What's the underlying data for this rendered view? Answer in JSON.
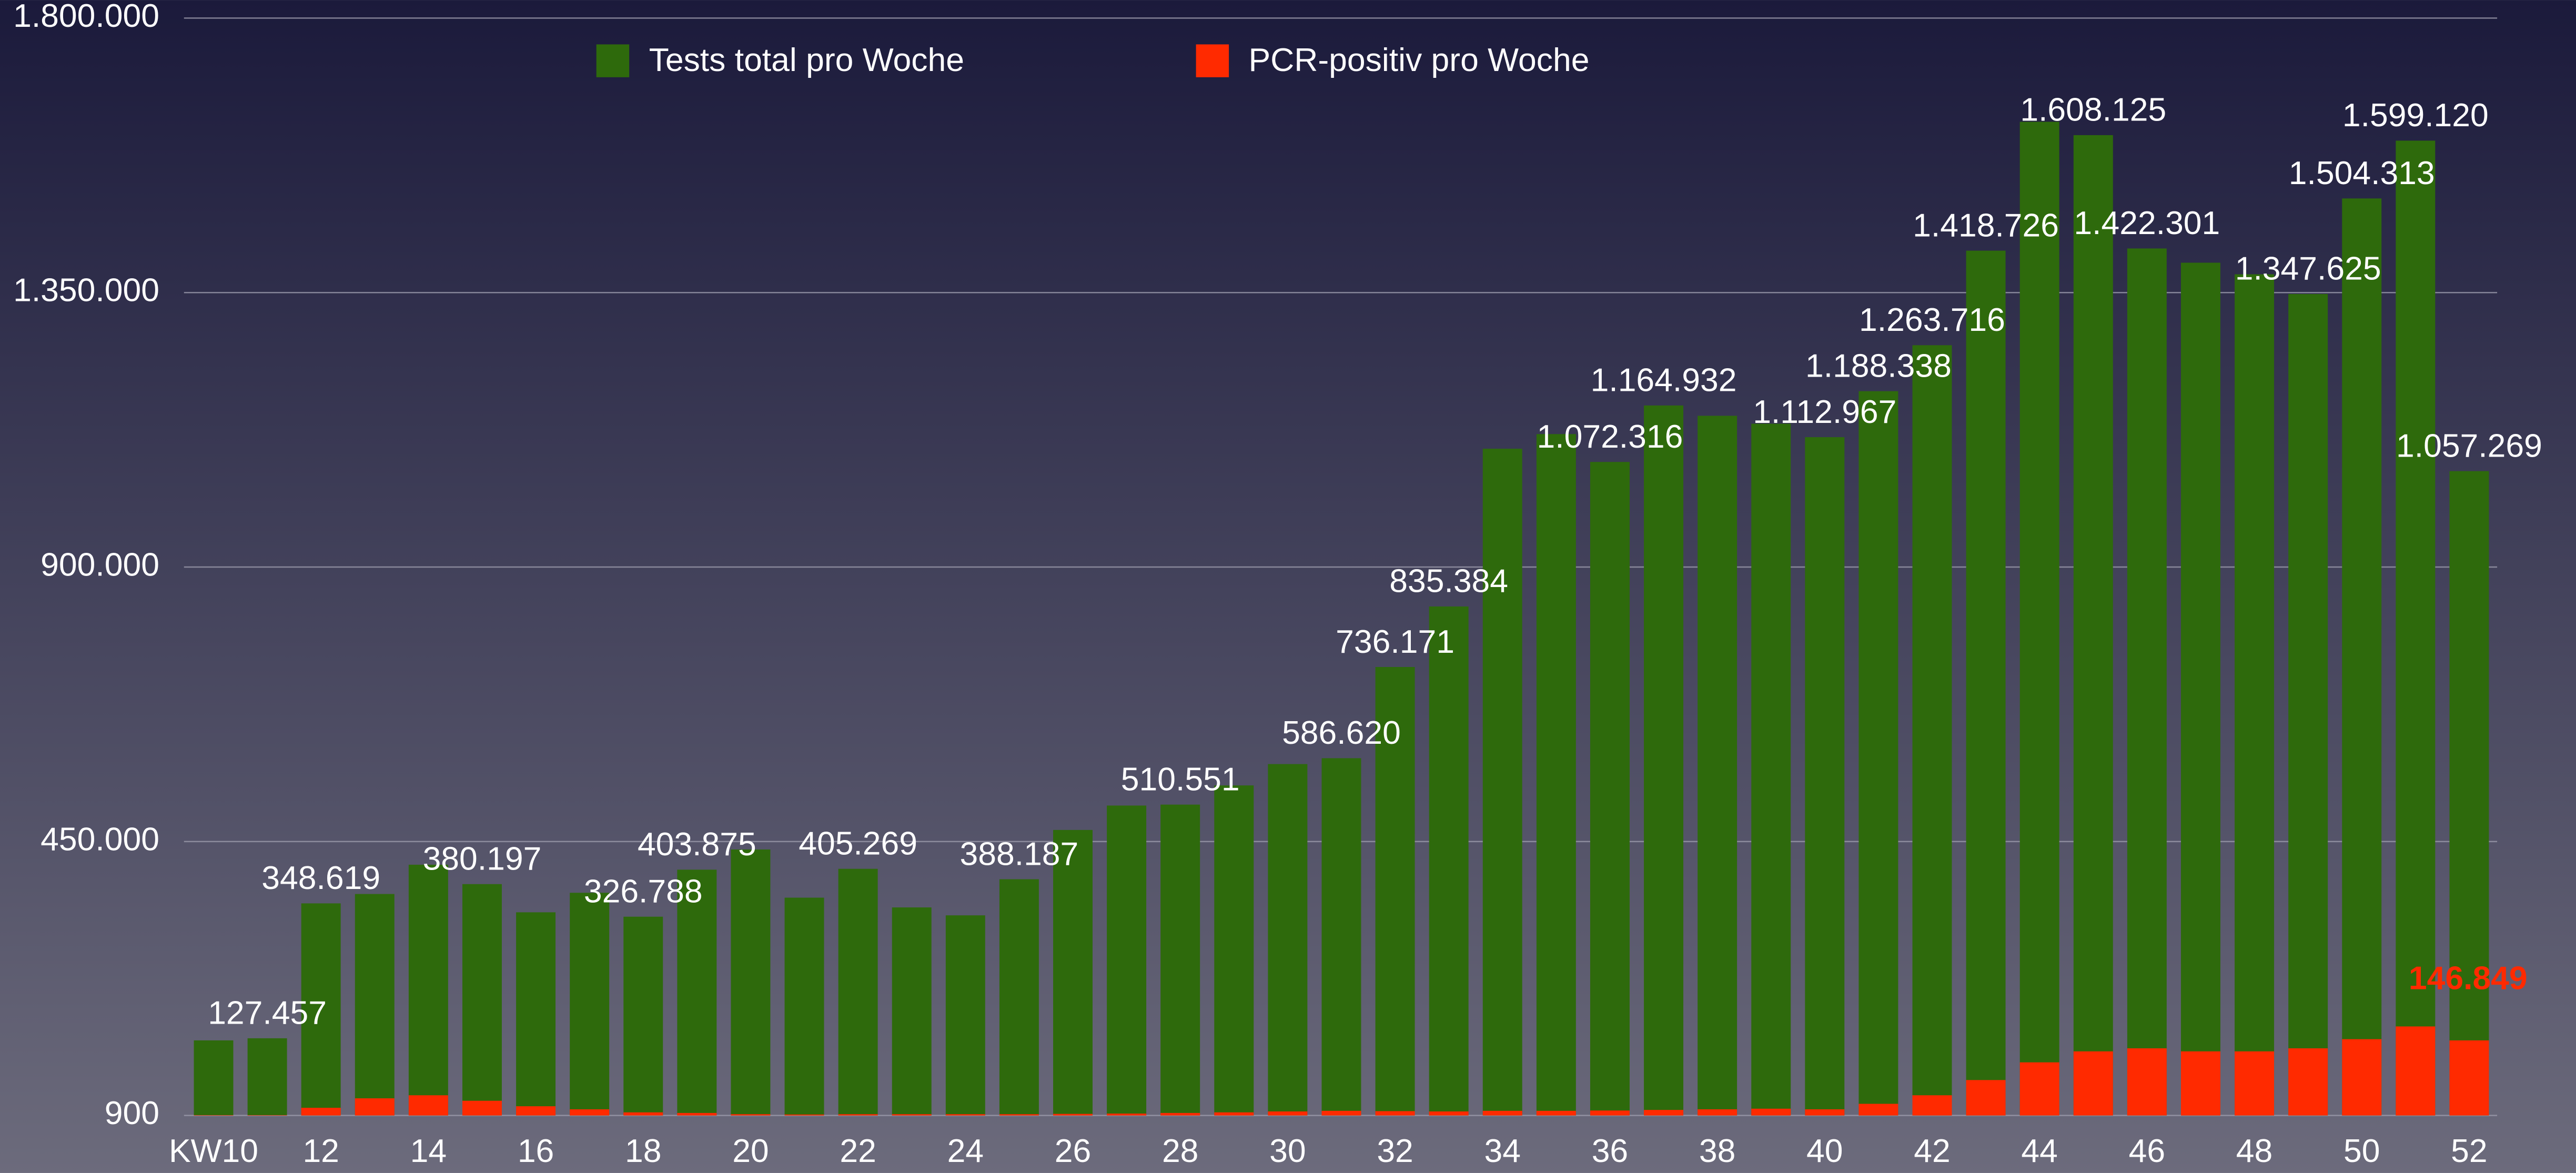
{
  "chart_data": {
    "type": "bar",
    "legend": "top",
    "grid": true,
    "categories": [
      "KW10",
      null,
      "12",
      null,
      "14",
      null,
      "16",
      null,
      "18",
      null,
      "20",
      null,
      "22",
      null,
      "24",
      null,
      "26",
      null,
      "28",
      null,
      "30",
      null,
      "32",
      null,
      "34",
      null,
      "36",
      null,
      "38",
      null,
      "40",
      null,
      "42",
      null,
      "44",
      null,
      "46",
      null,
      "48",
      null,
      "50",
      null,
      "52"
    ],
    "series": [
      {
        "name": "Tests total pro Woche",
        "color": "#2e6a0c",
        "values": [
          124000,
          127457,
          348619,
          364000,
          412000,
          380197,
          334000,
          366000,
          326788,
          403875,
          437000,
          358000,
          405269,
          342000,
          329000,
          388187,
          469000,
          509000,
          510551,
          542000,
          577000,
          586620,
          736171,
          835384,
          1094000,
          1118000,
          1072316,
          1164932,
          1148000,
          1135000,
          1112967,
          1188338,
          1263716,
          1418726,
          1630000,
          1608125,
          1422301,
          1399000,
          1380000,
          1347625,
          1504313,
          1599120,
          1057269
        ],
        "value_labels": [
          null,
          "127.457",
          "348.619",
          null,
          null,
          "380.197",
          null,
          null,
          "326.788",
          "403.875",
          null,
          null,
          "405.269",
          null,
          null,
          "388.187",
          null,
          null,
          "510.551",
          null,
          null,
          "586.620",
          "736.171",
          "835.384",
          null,
          null,
          "1.072.316",
          "1.164.932",
          null,
          null,
          "1.112.967",
          "1.188.338",
          "1.263.716",
          "1.418.726",
          null,
          "1.608.125",
          "1.422.301",
          null,
          null,
          "1.347.625",
          "1.504.313",
          "1.599.120",
          "1.057.269"
        ]
      },
      {
        "name": "PCR-positiv pro Woche",
        "color": "#ff2a00",
        "values": [
          1500,
          1500,
          13500,
          29000,
          34000,
          25000,
          16000,
          11000,
          6000,
          5000,
          3000,
          2500,
          3000,
          3000,
          3000,
          3000,
          3500,
          4000,
          5000,
          6000,
          7500,
          8500,
          8000,
          7500,
          8500,
          8500,
          9000,
          10000,
          11000,
          12000,
          11000,
          20000,
          34000,
          59000,
          88000,
          106000,
          111000,
          106000,
          106000,
          111000,
          126000,
          146849,
          124000
        ],
        "value_labels": [
          null,
          null,
          null,
          null,
          null,
          null,
          null,
          null,
          null,
          null,
          null,
          null,
          null,
          null,
          null,
          null,
          null,
          null,
          null,
          null,
          null,
          null,
          null,
          null,
          null,
          null,
          null,
          null,
          null,
          null,
          null,
          null,
          null,
          null,
          null,
          null,
          null,
          null,
          null,
          null,
          null,
          "146.849",
          null
        ]
      }
    ],
    "ylim": [
      900,
      1800000
    ],
    "yticks": [
      900,
      {
        "value": 450000,
        "label": "450.000"
      },
      {
        "value": 900000,
        "label": "900.000"
      },
      {
        "value": 1350000,
        "label": "1.350.000"
      },
      {
        "value": 1800000,
        "label": "1.800.000"
      }
    ]
  }
}
